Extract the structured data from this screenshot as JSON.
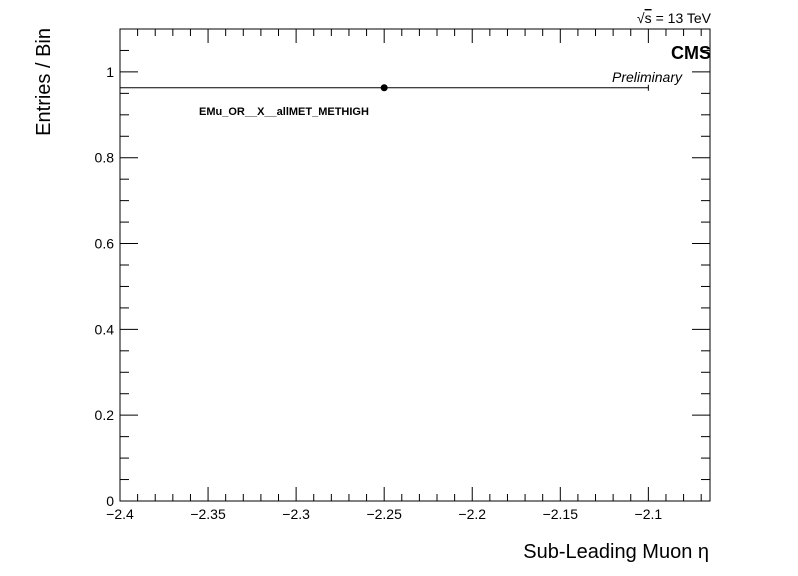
{
  "chart_data": {
    "type": "scatter",
    "energy_label": "= 13 TeV",
    "sqrt_symbol": "√",
    "energy_var": "s",
    "cms_label": "CMS",
    "preliminary_label": "Preliminary",
    "xlabel": "Sub-Leading Muon η",
    "ylabel": "Entries / Bin",
    "xlim": [
      -2.4,
      -2.065
    ],
    "ylim": [
      0,
      1.1
    ],
    "x_ticks": [
      -2.4,
      -2.35,
      -2.3,
      -2.25,
      -2.2,
      -2.15,
      -2.1
    ],
    "x_tick_labels": [
      "−2.4",
      "−2.35",
      "−2.3",
      "−2.25",
      "−2.2",
      "−2.15",
      "−2.1"
    ],
    "y_ticks": [
      0,
      0.2,
      0.4,
      0.6,
      0.8,
      1
    ],
    "y_tick_labels": [
      "0",
      "0.2",
      "0.4",
      "0.6",
      "0.8",
      "1"
    ],
    "series": [
      {
        "name": "EMu_OR__X__allMET_METHIGH",
        "points": [
          {
            "x": -2.25,
            "y": 0.963,
            "xerr_low": 0.15,
            "xerr_high": 0.15,
            "yerr": 0.0
          }
        ]
      }
    ],
    "grid": false,
    "legend_position": "top-left"
  }
}
